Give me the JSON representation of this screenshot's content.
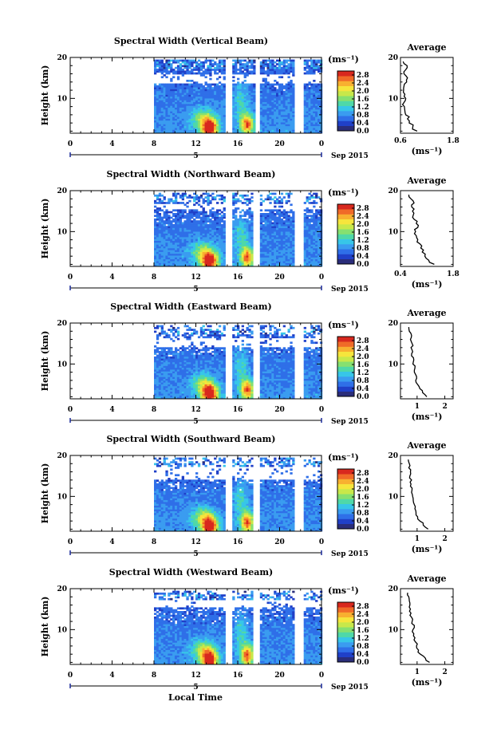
{
  "figure": {
    "x_axis_label": "Local Time",
    "date_label": "5",
    "month_year_label": "Sep 2015",
    "unit_label": "(ms⁻¹)",
    "avg_title": "Average",
    "avg_unit_label": "(ms⁻¹)"
  },
  "colorscale": [
    "#2a2d7a",
    "#2040c8",
    "#2f6fe8",
    "#3a9cf0",
    "#37c6e8",
    "#4fd8a8",
    "#86e070",
    "#c8e84a",
    "#f6e53c",
    "#f8b030",
    "#f06a28",
    "#d8281e"
  ],
  "chart_data": [
    {
      "type": "heatmap",
      "title": "Spectral Width (Vertical Beam)",
      "ylabel": "Height (km)",
      "x_ticks": [
        "0",
        "4",
        "8",
        "12",
        "16",
        "20",
        "0"
      ],
      "xlim_hours": [
        0,
        24
      ],
      "y_ticks": [
        "10",
        "20"
      ],
      "ylim_km": [
        1.5,
        20
      ],
      "colorbar_ticks": [
        "2.8",
        "2.4",
        "2.0",
        "1.6",
        "1.2",
        "0.8",
        "0.4",
        "0.0"
      ],
      "data_start_hour": 8,
      "gaps_hours": [
        [
          14.9,
          15.3
        ],
        [
          17.7,
          18.1
        ],
        [
          21.6,
          22.1
        ]
      ],
      "blank_heights_km": [
        [
          13.5,
          15.5
        ]
      ],
      "avg_profile": {
        "xlim": [
          0.6,
          1.8
        ],
        "x_ticks": [
          "0.6",
          "1.8"
        ],
        "y_ticks": [
          "10",
          "20"
        ],
        "height_km": [
          2,
          3,
          4,
          5,
          6,
          7,
          8,
          9,
          10,
          11,
          12,
          13,
          14,
          15,
          16,
          17,
          18,
          19
        ],
        "width_ms": [
          0.98,
          0.88,
          0.8,
          0.76,
          0.72,
          0.7,
          0.69,
          0.68,
          0.72,
          0.7,
          0.67,
          0.68,
          0.74,
          0.76,
          0.68,
          0.72,
          0.75,
          0.66
        ]
      }
    },
    {
      "type": "heatmap",
      "title": "Spectral Width (Northward Beam)",
      "ylabel": "Height (km)",
      "x_ticks": [
        "0",
        "4",
        "8",
        "12",
        "16",
        "20",
        "0"
      ],
      "xlim_hours": [
        0,
        24
      ],
      "y_ticks": [
        "10",
        "20"
      ],
      "ylim_km": [
        1.5,
        20
      ],
      "colorbar_ticks": [
        "2.8",
        "2.4",
        "2.0",
        "1.6",
        "1.2",
        "0.8",
        "0.4",
        "0.0"
      ],
      "data_start_hour": 8,
      "gaps_hours": [
        [
          14.9,
          15.3
        ],
        [
          17.6,
          18.0
        ],
        [
          21.6,
          22.1
        ]
      ],
      "blank_heights_km": [
        [
          15,
          16.5
        ]
      ],
      "avg_profile": {
        "xlim": [
          0.4,
          1.8
        ],
        "x_ticks": [
          "0.4",
          "1.8"
        ],
        "y_ticks": [
          "10",
          "20"
        ],
        "height_km": [
          2,
          3,
          4,
          5,
          6,
          7,
          8,
          9,
          10,
          11,
          12,
          13,
          14,
          15,
          16,
          17,
          18,
          19
        ],
        "width_ms": [
          1.3,
          1.15,
          1.05,
          0.98,
          0.94,
          0.92,
          0.86,
          0.82,
          0.8,
          0.86,
          0.82,
          0.76,
          0.74,
          0.72,
          0.7,
          0.76,
          0.68,
          0.62
        ]
      }
    },
    {
      "type": "heatmap",
      "title": "Spectral Width (Eastward Beam)",
      "ylabel": "Height (km)",
      "x_ticks": [
        "0",
        "4",
        "8",
        "12",
        "16",
        "20",
        "0"
      ],
      "xlim_hours": [
        0,
        24
      ],
      "y_ticks": [
        "10",
        "20"
      ],
      "ylim_km": [
        1.5,
        20
      ],
      "colorbar_ticks": [
        "2.8",
        "2.4",
        "2.0",
        "1.6",
        "1.2",
        "0.8",
        "0.4",
        "0.0"
      ],
      "data_start_hour": 8,
      "gaps_hours": [
        [
          14.9,
          15.3
        ],
        [
          17.6,
          18.0
        ],
        [
          21.6,
          22.1
        ]
      ],
      "blank_heights_km": [
        [
          14,
          16
        ]
      ],
      "avg_profile": {
        "xlim": [
          0.4,
          2.3
        ],
        "x_ticks": [
          "1",
          "2"
        ],
        "y_ticks": [
          "10",
          "20"
        ],
        "height_km": [
          2,
          3,
          4,
          5,
          6,
          7,
          8,
          9,
          10,
          11,
          12,
          13,
          14,
          15,
          16,
          17,
          18,
          19
        ],
        "width_ms": [
          1.35,
          1.2,
          1.1,
          1.02,
          0.95,
          0.98,
          0.9,
          0.92,
          0.85,
          0.88,
          0.8,
          0.84,
          0.78,
          0.82,
          0.76,
          0.8,
          0.72,
          0.7
        ]
      }
    },
    {
      "type": "heatmap",
      "title": "Spectral Width (Southward Beam)",
      "ylabel": "Height (km)",
      "x_ticks": [
        "0",
        "4",
        "8",
        "12",
        "16",
        "20",
        "0"
      ],
      "xlim_hours": [
        0,
        24
      ],
      "y_ticks": [
        "10",
        "20"
      ],
      "ylim_km": [
        1.5,
        20
      ],
      "colorbar_ticks": [
        "2.8",
        "2.4",
        "2.0",
        "1.6",
        "1.2",
        "0.8",
        "0.4",
        "0.0"
      ],
      "data_start_hour": 8,
      "gaps_hours": [
        [
          14.9,
          15.3
        ],
        [
          17.6,
          18.0
        ],
        [
          21.6,
          22.1
        ]
      ],
      "blank_heights_km": [
        [
          14,
          17
        ]
      ],
      "avg_profile": {
        "xlim": [
          0.4,
          2.3
        ],
        "x_ticks": [
          "1",
          "2"
        ],
        "y_ticks": [
          "10",
          "20"
        ],
        "height_km": [
          2,
          3,
          4,
          5,
          6,
          7,
          8,
          9,
          10,
          11,
          12,
          13,
          14,
          15,
          16,
          17,
          18,
          19
        ],
        "width_ms": [
          1.4,
          1.22,
          1.1,
          1.02,
          0.96,
          0.92,
          0.9,
          0.86,
          0.84,
          0.8,
          0.82,
          0.78,
          0.8,
          0.74,
          0.76,
          0.7,
          0.72,
          0.68
        ]
      }
    },
    {
      "type": "heatmap",
      "title": "Spectral Width (Westward Beam)",
      "ylabel": "Height (km)",
      "x_ticks": [
        "0",
        "4",
        "8",
        "12",
        "16",
        "20",
        "0"
      ],
      "xlim_hours": [
        0,
        24
      ],
      "y_ticks": [
        "10",
        "20"
      ],
      "ylim_km": [
        1.5,
        20
      ],
      "colorbar_ticks": [
        "2.8",
        "2.4",
        "2.0",
        "1.6",
        "1.2",
        "0.8",
        "0.4",
        "0.0"
      ],
      "data_start_hour": 8,
      "gaps_hours": [
        [
          14.9,
          15.3
        ],
        [
          17.6,
          18.0
        ],
        [
          21.6,
          22.1
        ]
      ],
      "blank_heights_km": [
        [
          15,
          17
        ]
      ],
      "avg_profile": {
        "xlim": [
          0.4,
          2.3
        ],
        "x_ticks": [
          "1",
          "2"
        ],
        "y_ticks": [
          "10",
          "20"
        ],
        "height_km": [
          2,
          3,
          4,
          5,
          6,
          7,
          8,
          9,
          10,
          11,
          12,
          13,
          14,
          15,
          16,
          17,
          18,
          19
        ],
        "width_ms": [
          1.45,
          1.3,
          1.12,
          1.05,
          0.98,
          0.94,
          0.92,
          0.88,
          0.85,
          0.9,
          0.82,
          0.8,
          0.78,
          0.76,
          0.74,
          0.72,
          0.7,
          0.66
        ]
      }
    }
  ]
}
